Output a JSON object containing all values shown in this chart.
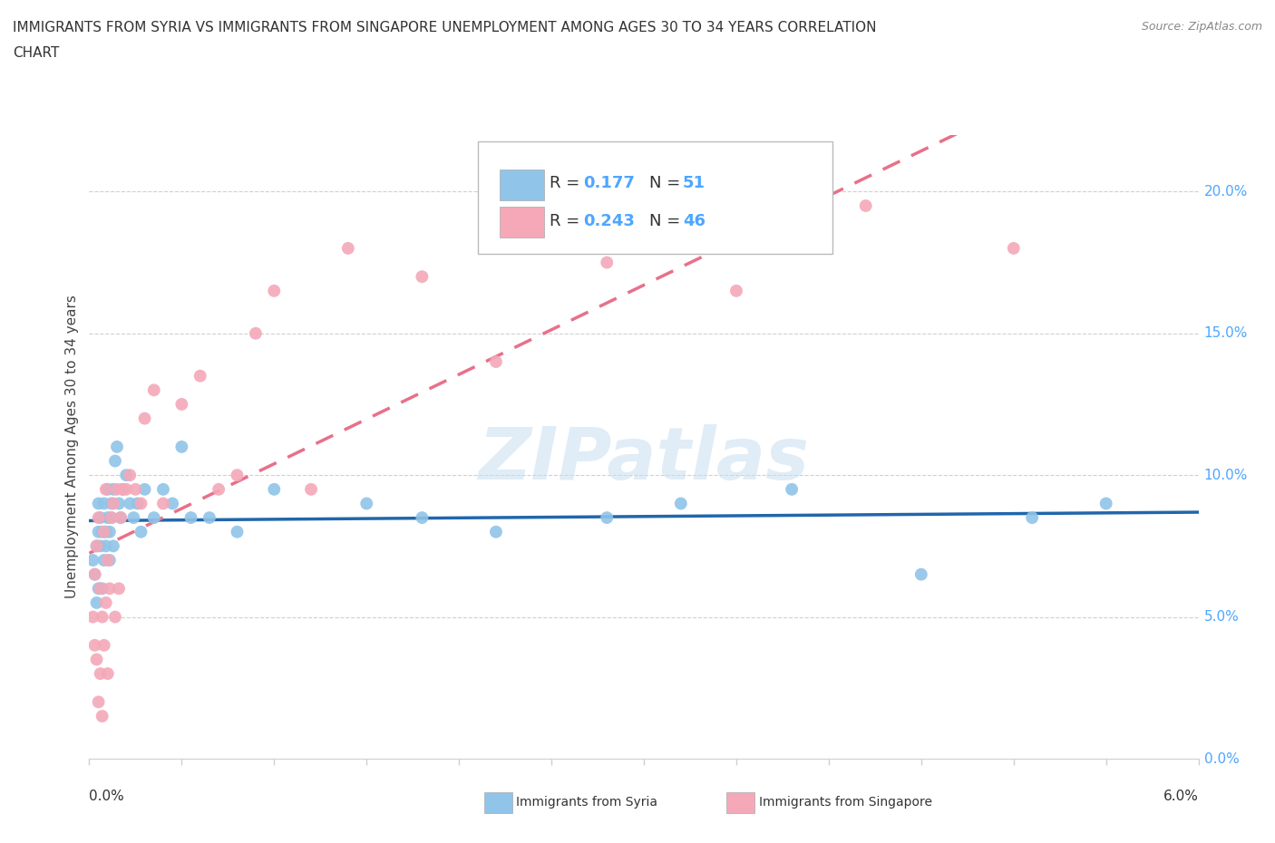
{
  "title_line1": "IMMIGRANTS FROM SYRIA VS IMMIGRANTS FROM SINGAPORE UNEMPLOYMENT AMONG AGES 30 TO 34 YEARS CORRELATION",
  "title_line2": "CHART",
  "source": "Source: ZipAtlas.com",
  "ylabel": "Unemployment Among Ages 30 to 34 years",
  "xlim": [
    0.0,
    6.0
  ],
  "ylim": [
    0.0,
    22.0
  ],
  "yticks": [
    0,
    5,
    10,
    15,
    20
  ],
  "ytick_labels": [
    "0.0%",
    "5.0%",
    "10.0%",
    "15.0%",
    "20.0%"
  ],
  "watermark": "ZIPatlas",
  "syria_color": "#90c4e8",
  "singapore_color": "#f4a8b8",
  "syria_line_color": "#2166ac",
  "singapore_line_color": "#e8708a",
  "legend_syria_R": "0.177",
  "legend_syria_N": "51",
  "legend_singapore_R": "0.243",
  "legend_singapore_N": "46",
  "syria_x": [
    0.02,
    0.03,
    0.04,
    0.04,
    0.05,
    0.05,
    0.05,
    0.06,
    0.06,
    0.07,
    0.07,
    0.08,
    0.08,
    0.09,
    0.09,
    0.1,
    0.1,
    0.11,
    0.11,
    0.12,
    0.12,
    0.13,
    0.13,
    0.14,
    0.15,
    0.16,
    0.17,
    0.18,
    0.2,
    0.22,
    0.24,
    0.26,
    0.28,
    0.3,
    0.35,
    0.4,
    0.45,
    0.5,
    0.55,
    0.65,
    0.8,
    1.0,
    1.5,
    1.8,
    2.2,
    2.8,
    3.2,
    3.8,
    4.5,
    5.1,
    5.5
  ],
  "syria_y": [
    7.0,
    6.5,
    5.5,
    7.5,
    6.0,
    8.0,
    9.0,
    7.5,
    8.5,
    8.0,
    6.0,
    7.0,
    9.0,
    7.5,
    8.0,
    8.5,
    9.5,
    8.0,
    7.0,
    9.0,
    8.5,
    7.5,
    9.5,
    10.5,
    11.0,
    9.0,
    8.5,
    9.5,
    10.0,
    9.0,
    8.5,
    9.0,
    8.0,
    9.5,
    8.5,
    9.5,
    9.0,
    11.0,
    8.5,
    8.5,
    8.0,
    9.5,
    9.0,
    8.5,
    8.0,
    8.5,
    9.0,
    9.5,
    6.5,
    8.5,
    9.0
  ],
  "singapore_x": [
    0.02,
    0.03,
    0.03,
    0.04,
    0.04,
    0.05,
    0.05,
    0.06,
    0.06,
    0.07,
    0.07,
    0.08,
    0.08,
    0.09,
    0.09,
    0.1,
    0.1,
    0.11,
    0.12,
    0.13,
    0.14,
    0.15,
    0.16,
    0.17,
    0.18,
    0.2,
    0.22,
    0.25,
    0.28,
    0.3,
    0.35,
    0.4,
    0.5,
    0.6,
    0.7,
    0.8,
    0.9,
    1.0,
    1.2,
    1.4,
    1.8,
    2.2,
    2.8,
    3.5,
    4.2,
    5.0
  ],
  "singapore_y": [
    5.0,
    4.0,
    6.5,
    3.5,
    7.5,
    2.0,
    8.5,
    3.0,
    6.0,
    1.5,
    5.0,
    4.0,
    8.0,
    5.5,
    9.5,
    3.0,
    7.0,
    6.0,
    8.5,
    9.0,
    5.0,
    9.5,
    6.0,
    8.5,
    9.5,
    9.5,
    10.0,
    9.5,
    9.0,
    12.0,
    13.0,
    9.0,
    12.5,
    13.5,
    9.5,
    10.0,
    15.0,
    16.5,
    9.5,
    18.0,
    17.0,
    14.0,
    17.5,
    16.5,
    19.5,
    18.0
  ],
  "background_color": "#ffffff",
  "grid_color": "#d0d0d0",
  "right_label_color": "#4da6ff"
}
